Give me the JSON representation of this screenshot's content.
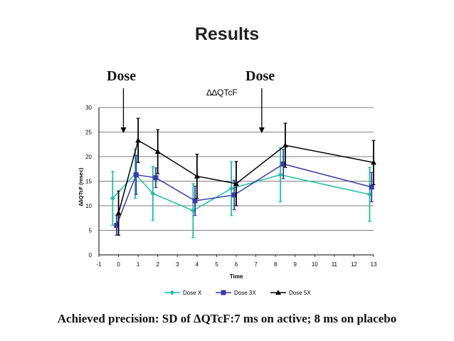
{
  "slide": {
    "title": "Results",
    "dose_label_1": "Dose",
    "dose_label_2": "Dose",
    "footer": "Achieved precision: SD of ∆QTcF:7 ms on active; 8 ms on placebo"
  },
  "chart_data": {
    "type": "line",
    "title": "∆∆QTcF",
    "xlabel": "Time",
    "ylabel": "∆∆QTcF (msec)",
    "xlim": [
      -1,
      13
    ],
    "ylim": [
      0,
      30
    ],
    "x_ticks": [
      -1,
      0,
      1,
      2,
      3,
      4,
      5,
      6,
      7,
      8,
      9,
      10,
      11,
      12,
      13
    ],
    "y_ticks": [
      0,
      5,
      10,
      15,
      20,
      25,
      30
    ],
    "grid": true,
    "legend": "bottom",
    "dose_markers_x": [
      0.25,
      7.3
    ],
    "series": [
      {
        "name": "Dose X",
        "color": "#1fbfa0",
        "marker": "diamond",
        "x": [
          -0.3,
          0.85,
          1.75,
          3.8,
          5.75,
          8.25,
          12.8
        ],
        "y": [
          11.5,
          16.5,
          12.5,
          9.0,
          13.5,
          16.3,
          12.3
        ],
        "err": [
          5.5,
          5.0,
          5.5,
          5.5,
          5.5,
          5.5,
          5.5
        ]
      },
      {
        "name": "Dose 3X",
        "color": "#3a3aa8",
        "marker": "square",
        "x": [
          -0.1,
          0.9,
          1.9,
          3.9,
          5.9,
          8.4,
          12.9
        ],
        "y": [
          6.0,
          16.3,
          15.7,
          11.0,
          12.2,
          18.5,
          13.8
        ],
        "err": [
          2.0,
          4.0,
          2.0,
          3.0,
          3.0,
          3.0,
          3.0
        ]
      },
      {
        "name": "Dose 5X",
        "color": "#000000",
        "marker": "triangle",
        "x": [
          0.0,
          1.0,
          2.0,
          4.0,
          6.0,
          8.5,
          13.0
        ],
        "y": [
          8.5,
          23.3,
          21.0,
          16.0,
          14.5,
          22.3,
          18.8
        ],
        "err": [
          4.5,
          4.5,
          4.5,
          4.5,
          4.5,
          4.5,
          4.5
        ]
      }
    ]
  }
}
